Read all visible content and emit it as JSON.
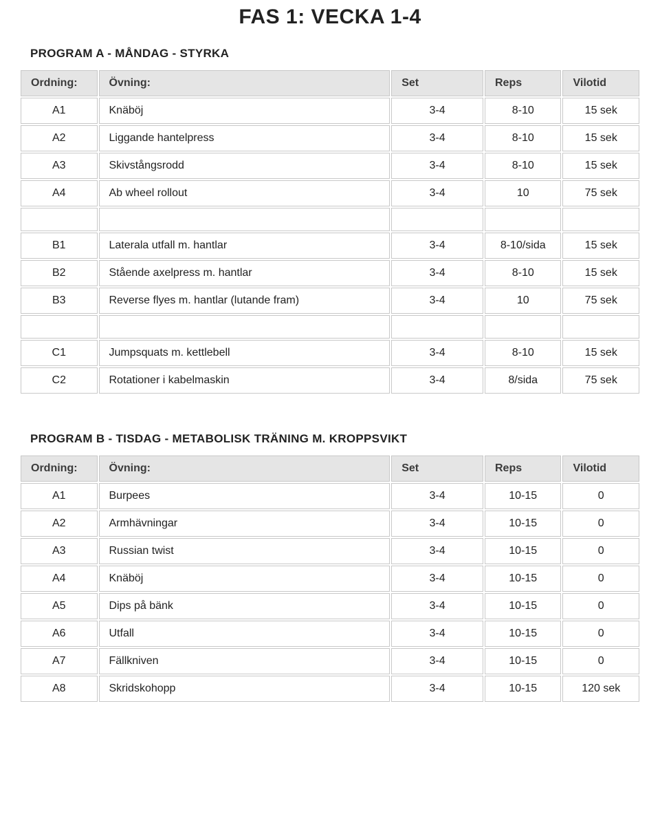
{
  "title": "FAS 1: VECKA 1-4",
  "programA": {
    "title": "PROGRAM A - MÅNDAG - STYRKA",
    "columns": [
      "Ordning:",
      "Övning:",
      "Set",
      "Reps",
      "Vilotid"
    ],
    "rows": [
      {
        "ordning": "A1",
        "ovning": "Knäböj",
        "set": "3-4",
        "reps": "8-10",
        "vilotid": "15 sek"
      },
      {
        "ordning": "A2",
        "ovning": "Liggande hantelpress",
        "set": "3-4",
        "reps": "8-10",
        "vilotid": "15 sek"
      },
      {
        "ordning": "A3",
        "ovning": "Skivstångsrodd",
        "set": "3-4",
        "reps": "8-10",
        "vilotid": "15 sek"
      },
      {
        "ordning": "A4",
        "ovning": "Ab wheel rollout",
        "set": "3-4",
        "reps": "10",
        "vilotid": "75 sek"
      },
      {
        "spacer": true
      },
      {
        "ordning": "B1",
        "ovning": "Laterala utfall m. hantlar",
        "set": "3-4",
        "reps": "8-10/sida",
        "vilotid": "15 sek"
      },
      {
        "ordning": "B2",
        "ovning": "Stående axelpress m. hantlar",
        "set": "3-4",
        "reps": "8-10",
        "vilotid": "15 sek"
      },
      {
        "ordning": "B3",
        "ovning": "Reverse flyes m. hantlar (lutande fram)",
        "set": "3-4",
        "reps": "10",
        "vilotid": "75 sek"
      },
      {
        "spacer": true
      },
      {
        "ordning": "C1",
        "ovning": "Jumpsquats m. kettlebell",
        "set": "3-4",
        "reps": "8-10",
        "vilotid": "15 sek"
      },
      {
        "ordning": "C2",
        "ovning": "Rotationer i kabelmaskin",
        "set": "3-4",
        "reps": "8/sida",
        "vilotid": "75 sek"
      }
    ]
  },
  "programB": {
    "title": "PROGRAM B - TISDAG - METABOLISK TRÄNING M. KROPPSVIKT",
    "columns": [
      "Ordning:",
      "Övning:",
      "Set",
      "Reps",
      "Vilotid"
    ],
    "rows": [
      {
        "ordning": "A1",
        "ovning": "Burpees",
        "set": "3-4",
        "reps": "10-15",
        "vilotid": "0"
      },
      {
        "ordning": "A2",
        "ovning": "Armhävningar",
        "set": "3-4",
        "reps": "10-15",
        "vilotid": "0"
      },
      {
        "ordning": "A3",
        "ovning": "Russian twist",
        "set": "3-4",
        "reps": "10-15",
        "vilotid": "0"
      },
      {
        "ordning": "A4",
        "ovning": "Knäböj",
        "set": "3-4",
        "reps": "10-15",
        "vilotid": "0"
      },
      {
        "ordning": "A5",
        "ovning": "Dips på bänk",
        "set": "3-4",
        "reps": "10-15",
        "vilotid": "0"
      },
      {
        "ordning": "A6",
        "ovning": "Utfall",
        "set": "3-4",
        "reps": "10-15",
        "vilotid": "0"
      },
      {
        "ordning": "A7",
        "ovning": "Fällkniven",
        "set": "3-4",
        "reps": "10-15",
        "vilotid": "0"
      },
      {
        "ordning": "A8",
        "ovning": "Skridskohopp",
        "set": "3-4",
        "reps": "10-15",
        "vilotid": "120 sek"
      }
    ]
  }
}
